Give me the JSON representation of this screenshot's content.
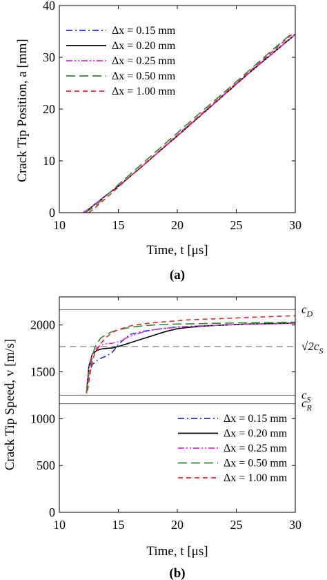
{
  "colors": {
    "dx_015": "#1f2fd6",
    "dx_020": "#000000",
    "dx_025": "#e028e0",
    "dx_050": "#2a8a2a",
    "dx_100": "#e02a2a",
    "reference_line": "#666666"
  },
  "chart_data": [
    {
      "type": "line",
      "panel_label": "(a)",
      "xlabel": "Time, t  [μs]",
      "ylabel": "Crack Tip Position, a [mm]",
      "xlim": [
        10,
        30
      ],
      "ylim": [
        0,
        40
      ],
      "xticks": [
        "10",
        "15",
        "20",
        "25",
        "30"
      ],
      "yticks": [
        "0",
        "10",
        "20",
        "30",
        "40"
      ],
      "grid": false,
      "legend_position": "top-left",
      "series": [
        {
          "name": "Δx = 0.15 mm",
          "color": "#1f2fd6",
          "style": "dash-dot",
          "x": [
            12.0,
            12.5,
            13,
            14,
            15,
            16,
            17,
            18,
            20,
            22,
            24,
            26,
            28,
            30
          ],
          "y": [
            0,
            0.7,
            1.6,
            3.4,
            5.1,
            7.0,
            8.9,
            10.9,
            14.9,
            18.9,
            22.9,
            26.9,
            30.7,
            34.5
          ]
        },
        {
          "name": "Δx = 0.20 mm",
          "color": "#000000",
          "style": "solid",
          "x": [
            12.0,
            12.5,
            13,
            14,
            15,
            16,
            17,
            18,
            20,
            22,
            24,
            26,
            28,
            30
          ],
          "y": [
            0,
            0.7,
            1.6,
            3.4,
            5.1,
            7.0,
            8.9,
            10.9,
            14.8,
            18.8,
            22.8,
            26.8,
            30.6,
            34.4
          ]
        },
        {
          "name": "Δx = 0.25 mm",
          "color": "#e028e0",
          "style": "dash-dot-dot",
          "x": [
            12.0,
            12.5,
            13,
            14,
            15,
            16,
            17,
            18,
            20,
            22,
            24,
            26,
            28,
            30
          ],
          "y": [
            0,
            0.7,
            1.6,
            3.4,
            5.1,
            7.0,
            8.9,
            10.9,
            14.8,
            18.8,
            22.8,
            26.8,
            30.6,
            34.4
          ]
        },
        {
          "name": "Δx = 0.50 mm",
          "color": "#2a8a2a",
          "style": "long-dash",
          "x": [
            12.2,
            13,
            14,
            15,
            16,
            17,
            18,
            20,
            22,
            24,
            26,
            28,
            29.8
          ],
          "y": [
            0,
            1.2,
            3.3,
            5.4,
            7.4,
            9.4,
            11.4,
            15.4,
            19.4,
            23.3,
            27.3,
            31.3,
            34.8
          ]
        },
        {
          "name": "Δx = 1.00 mm",
          "color": "#e02a2a",
          "style": "dash",
          "x": [
            12.5,
            13,
            14,
            15,
            16,
            17,
            18,
            20,
            22,
            24,
            26,
            28,
            29.8
          ],
          "y": [
            0,
            0.9,
            2.9,
            4.9,
            7.0,
            9.0,
            11.0,
            15.0,
            19.0,
            23.0,
            27.0,
            31.0,
            34.6
          ]
        }
      ]
    },
    {
      "type": "line",
      "panel_label": "(b)",
      "xlabel": "Time, t  [μs]",
      "ylabel": "Crack Tip Speed, v [m/s]",
      "xlim": [
        10,
        30
      ],
      "ylim": [
        0,
        2300
      ],
      "xticks": [
        "10",
        "15",
        "20",
        "25",
        "30"
      ],
      "yticks": [
        "0",
        "500",
        "1000",
        "1500",
        "2000"
      ],
      "grid": false,
      "legend_position": "bottom-right",
      "reference_lines": [
        {
          "label_base": "c",
          "label_sub": "D",
          "y": 2165,
          "style": "solid"
        },
        {
          "label_base": "√2c",
          "label_sub": "S",
          "y": 1770,
          "style": "dash"
        },
        {
          "label_base": "c",
          "label_sub": "S",
          "y": 1250,
          "style": "solid"
        },
        {
          "label_base": "c",
          "label_sub": "R",
          "y": 1160,
          "style": "solid"
        }
      ],
      "series": [
        {
          "name": "Δx = 0.15 mm",
          "color": "#1f2fd6",
          "style": "dash-dot",
          "x": [
            12.3,
            12.5,
            12.8,
            13.2,
            13.6,
            14.0,
            14.5,
            15.0,
            15.5,
            16.0,
            17,
            18,
            19,
            20,
            21,
            22,
            23,
            24,
            25,
            26,
            27,
            28,
            29,
            30
          ],
          "y": [
            1270,
            1480,
            1580,
            1620,
            1650,
            1670,
            1710,
            1790,
            1850,
            1900,
            1930,
            1950,
            1965,
            1980,
            1985,
            1990,
            1995,
            2000,
            2005,
            2010,
            2012,
            2015,
            2018,
            2020
          ]
        },
        {
          "name": "Δx = 0.20 mm",
          "color": "#000000",
          "style": "solid",
          "x": [
            12.3,
            12.5,
            12.8,
            13.2,
            13.6,
            14.0,
            14.5,
            15.0,
            15.5,
            16.0,
            17,
            18,
            19,
            20,
            21,
            22,
            23,
            24,
            25,
            26,
            27,
            28,
            29,
            30
          ],
          "y": [
            1270,
            1560,
            1690,
            1730,
            1745,
            1750,
            1755,
            1770,
            1790,
            1810,
            1850,
            1890,
            1930,
            1960,
            1975,
            1985,
            1995,
            2000,
            2005,
            2010,
            2012,
            2015,
            2018,
            2020
          ]
        },
        {
          "name": "Δx = 0.25 mm",
          "color": "#e028e0",
          "style": "dash-dot-dot",
          "x": [
            12.3,
            12.5,
            12.8,
            13.2,
            13.6,
            14.0,
            14.5,
            15.0,
            15.5,
            16.0,
            17,
            18,
            19,
            20,
            21,
            22,
            23,
            24,
            25,
            26,
            27,
            28,
            29,
            30
          ],
          "y": [
            1270,
            1560,
            1700,
            1760,
            1790,
            1800,
            1805,
            1820,
            1850,
            1880,
            1920,
            1950,
            1965,
            1975,
            1985,
            1990,
            1995,
            2000,
            2005,
            2008,
            2010,
            2012,
            2015,
            2018
          ]
        },
        {
          "name": "Δx = 0.50 mm",
          "color": "#2a8a2a",
          "style": "long-dash",
          "x": [
            12.3,
            12.6,
            13.0,
            13.5,
            14.0,
            14.5,
            15.0,
            16,
            17,
            18,
            19,
            20,
            21,
            22,
            23,
            24,
            25,
            26,
            27,
            28,
            29,
            30
          ],
          "y": [
            1280,
            1560,
            1760,
            1860,
            1900,
            1930,
            1950,
            1975,
            1990,
            2000,
            2005,
            2010,
            2012,
            2015,
            2018,
            2020,
            2022,
            2024,
            2025,
            2026,
            2028,
            2030
          ]
        },
        {
          "name": "Δx = 1.00 mm",
          "color": "#e02a2a",
          "style": "dash",
          "x": [
            12.4,
            12.7,
            13.0,
            13.5,
            14.0,
            14.5,
            15.0,
            16,
            17,
            18,
            19,
            20,
            21,
            22,
            23,
            24,
            25,
            26,
            27,
            28,
            29,
            30
          ],
          "y": [
            1300,
            1560,
            1700,
            1800,
            1870,
            1920,
            1950,
            1990,
            2010,
            2025,
            2035,
            2045,
            2055,
            2060,
            2065,
            2070,
            2075,
            2080,
            2085,
            2090,
            2095,
            2098
          ]
        }
      ]
    }
  ]
}
